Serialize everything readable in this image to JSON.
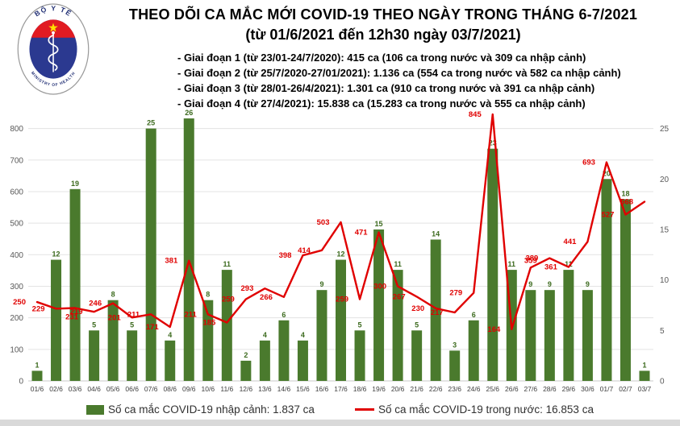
{
  "header": {
    "logo": {
      "top_text": "BỘ Y TẾ",
      "bottom_text": "MINISTRY OF HEALTH",
      "colors": {
        "red": "#e11b22",
        "blue": "#2b3990",
        "navy": "#1f2d73",
        "star": "#ffde00",
        "ring": "#999999"
      }
    },
    "title_line1": "THEO DÕI CA MẮC MỚI COVID-19 THEO NGÀY TRONG THÁNG 6-7/2021",
    "title_line2": "(từ 01/6/2021 đến 12h30 ngày 03/7/2021)",
    "phase_lines": [
      "- Giai đoạn 1 (từ 23/01-24/7/2020): 415 ca (106 ca trong nước và 309 ca nhập cảnh)",
      "- Giai đoạn 2 (từ 25/7/2020-27/01/2021): 1.136 ca (554 ca trong nước và 582 ca nhập cảnh)",
      "- Giai đoạn 3 (từ 28/01-26/4/2021): 1.301 ca (910 ca trong nước và 391 ca nhập cảnh)",
      "- Giai đoạn 4 (từ 27/4/2021): 15.838 ca (15.283 ca trong nước và 555 ca nhập cảnh)"
    ]
  },
  "chart_data": {
    "type": "bar+line",
    "title": "THEO DÕI CA MẮC MỚI COVID-19 THEO NGÀY TRONG THÁNG 6-7/2021",
    "categories": [
      "01/6",
      "02/6",
      "03/6",
      "04/6",
      "05/6",
      "06/6",
      "07/6",
      "08/6",
      "09/6",
      "10/6",
      "11/6",
      "12/6",
      "13/6",
      "14/6",
      "15/6",
      "16/6",
      "17/6",
      "18/6",
      "19/6",
      "20/6",
      "21/6",
      "22/6",
      "23/6",
      "24/6",
      "25/6",
      "26/6",
      "27/6",
      "28/6",
      "29/6",
      "30/6",
      "01/7",
      "02/7",
      "03/7"
    ],
    "series": [
      {
        "name": "Số ca mắc COVID-19 nhập cảnh",
        "type": "bar",
        "axis": "right",
        "color": "#4a7a2d",
        "values": [
          1,
          12,
          19,
          5,
          8,
          5,
          25,
          4,
          26,
          8,
          11,
          2,
          4,
          6,
          4,
          9,
          12,
          5,
          15,
          11,
          5,
          14,
          3,
          6,
          23,
          11,
          9,
          9,
          11,
          9,
          20,
          18,
          1
        ]
      },
      {
        "name": "Số ca mắc COVID-19 trong nước",
        "type": "line",
        "axis": "left",
        "color": "#e00000",
        "values": [
          250,
          229,
          231,
          219,
          246,
          201,
          211,
          171,
          381,
          211,
          185,
          259,
          293,
          266,
          398,
          414,
          503,
          259,
          471,
          300,
          267,
          230,
          217,
          279,
          845,
          164,
          359,
          389,
          361,
          441,
          693,
          527,
          568
        ]
      }
    ],
    "left_axis": {
      "min": 0,
      "max": 850,
      "ticks": [
        0,
        100,
        200,
        300,
        400,
        500,
        600,
        700,
        800
      ]
    },
    "right_axis": {
      "min": 0,
      "ticks": [
        0,
        5,
        10,
        15,
        20,
        25
      ],
      "ratio_to_left": 32
    },
    "layout": {
      "grid": "horizontal",
      "legend_position": "bottom",
      "line_label_pos": [
        "left",
        "left",
        "below",
        "left",
        "left",
        "left",
        "left",
        "left",
        "left",
        "left",
        "left",
        "left",
        "left",
        "left",
        "left",
        "left",
        "left",
        "left",
        "left",
        "left",
        "left",
        "left",
        "left",
        "left",
        "left",
        "left",
        "above",
        "left",
        "left",
        "left",
        "left",
        "left",
        "left"
      ]
    }
  },
  "legend": [
    {
      "marker": "bar-swatch",
      "color": "#4a7a2d",
      "label": "Số ca mắc COVID-19 nhập cảnh: 1.837 ca"
    },
    {
      "marker": "line-swatch",
      "color": "#e00000",
      "label": "Số ca mắc COVID-19 trong nước: 16.853 ca"
    }
  ]
}
